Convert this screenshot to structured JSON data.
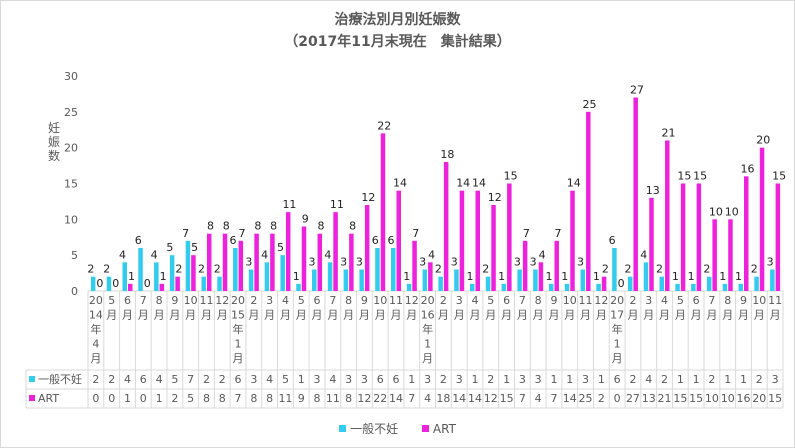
{
  "title": "治療法別月別妊娠数",
  "subtitle": "（2017年11月末現在　集計結果）",
  "colors": {
    "ippan": "#33ccee",
    "art": "#ee22dd",
    "text": "#595959",
    "grid": "#d9d9d9"
  },
  "chart_data": {
    "type": "bar",
    "title": "治療法別月別妊娠数",
    "subtitle": "（2017年11月末現在　集計結果）",
    "ylabel": "妊娠数",
    "xlabel": "",
    "ylim": [
      0,
      30
    ],
    "yticks": [
      0,
      5,
      10,
      15,
      20,
      25,
      30
    ],
    "grid": false,
    "legend": "bottom",
    "categories": [
      "2014年4月",
      "5月",
      "6月",
      "7月",
      "8月",
      "9月",
      "10月",
      "11月",
      "12月",
      "2015年1月",
      "2月",
      "3月",
      "4月",
      "5月",
      "6月",
      "7月",
      "8月",
      "9月",
      "10月",
      "11月",
      "12月",
      "2016年1月",
      "2月",
      "3月",
      "4月",
      "5月",
      "6月",
      "7月",
      "8月",
      "9月",
      "10月",
      "11月",
      "12月",
      "2017年1月",
      "2月",
      "3月",
      "4月",
      "5月",
      "6月",
      "7月",
      "8月",
      "9月",
      "10月",
      "11月"
    ],
    "category_labels": [
      [
        "20",
        "14",
        "年",
        "4",
        "月"
      ],
      [
        "5",
        "月"
      ],
      [
        "6",
        "月"
      ],
      [
        "7",
        "月"
      ],
      [
        "8",
        "月"
      ],
      [
        "9",
        "月"
      ],
      [
        "10",
        "月"
      ],
      [
        "11",
        "月"
      ],
      [
        "12",
        "月"
      ],
      [
        "20",
        "15",
        "年",
        "1",
        "月"
      ],
      [
        "2",
        "月"
      ],
      [
        "3",
        "月"
      ],
      [
        "4",
        "月"
      ],
      [
        "5",
        "月"
      ],
      [
        "6",
        "月"
      ],
      [
        "7",
        "月"
      ],
      [
        "8",
        "月"
      ],
      [
        "9",
        "月"
      ],
      [
        "10",
        "月"
      ],
      [
        "11",
        "月"
      ],
      [
        "12",
        "月"
      ],
      [
        "20",
        "16",
        "年",
        "1",
        "月"
      ],
      [
        "2",
        "月"
      ],
      [
        "3",
        "月"
      ],
      [
        "4",
        "月"
      ],
      [
        "5",
        "月"
      ],
      [
        "6",
        "月"
      ],
      [
        "7",
        "月"
      ],
      [
        "8",
        "月"
      ],
      [
        "9",
        "月"
      ],
      [
        "10",
        "月"
      ],
      [
        "11",
        "月"
      ],
      [
        "12",
        "月"
      ],
      [
        "20",
        "17",
        "年",
        "1",
        "月"
      ],
      [
        "2",
        "月"
      ],
      [
        "3",
        "月"
      ],
      [
        "4",
        "月"
      ],
      [
        "5",
        "月"
      ],
      [
        "6",
        "月"
      ],
      [
        "7",
        "月"
      ],
      [
        "8",
        "月"
      ],
      [
        "9",
        "月"
      ],
      [
        "10",
        "月"
      ],
      [
        "11",
        "月"
      ]
    ],
    "series": [
      {
        "name": "一般不妊",
        "color": "#33ccee",
        "values": [
          2,
          2,
          4,
          6,
          4,
          5,
          7,
          2,
          2,
          6,
          3,
          4,
          5,
          1,
          3,
          4,
          3,
          3,
          6,
          6,
          1,
          3,
          2,
          3,
          1,
          2,
          1,
          3,
          3,
          1,
          1,
          3,
          1,
          6,
          2,
          4,
          2,
          1,
          1,
          2,
          1,
          1,
          2,
          3
        ]
      },
      {
        "name": "ART",
        "color": "#ee22dd",
        "values": [
          0,
          0,
          1,
          0,
          1,
          2,
          5,
          8,
          8,
          7,
          8,
          8,
          11,
          9,
          8,
          11,
          8,
          12,
          22,
          14,
          7,
          4,
          18,
          14,
          14,
          12,
          15,
          7,
          4,
          7,
          14,
          25,
          2,
          0,
          27,
          13,
          21,
          15,
          15,
          10,
          10,
          16,
          20,
          15
        ]
      }
    ]
  }
}
